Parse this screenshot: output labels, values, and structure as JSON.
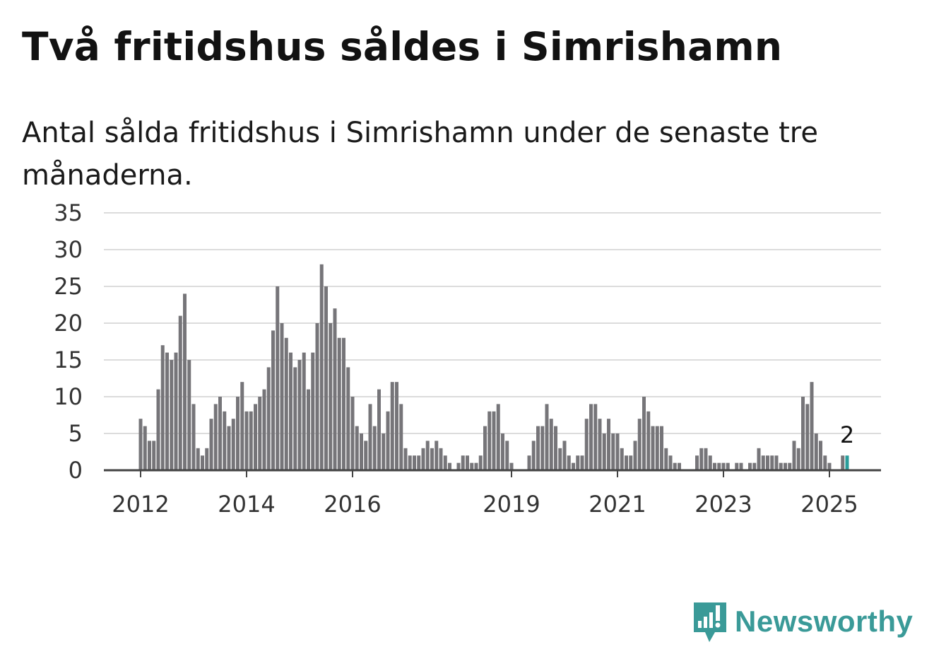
{
  "title": "Två fritidshus såldes i Simrishamn",
  "subtitle": "Antal sålda fritidshus i Simrishamn under de senaste tre månaderna.",
  "brand": {
    "name": "Newsworthy",
    "icon": "newsworthy-logo-icon",
    "color": "#3a9a98"
  },
  "colors": {
    "bar": "#767579",
    "highlight": "#2a9d9b",
    "grid": "#dcdcdc",
    "axis": "#444444"
  },
  "chart_data": {
    "type": "bar",
    "x_start_year": 2012,
    "frequency": "monthly",
    "ylim": [
      0,
      35
    ],
    "yticks": [
      0,
      5,
      10,
      15,
      20,
      25,
      30,
      35
    ],
    "xticks": [
      "2012",
      "2014",
      "2016",
      "2019",
      "2021",
      "2023",
      "2025"
    ],
    "grid": true,
    "series": [
      {
        "values": [
          7,
          6,
          4,
          4,
          11,
          17,
          16,
          15,
          16,
          21,
          24,
          15,
          9,
          3,
          2,
          3,
          7,
          9,
          10,
          8,
          6,
          7,
          10,
          12,
          8,
          8,
          9,
          10,
          11,
          14,
          19,
          25,
          20,
          18,
          16,
          14,
          15,
          16,
          11,
          16,
          20,
          28,
          25,
          20,
          22,
          18,
          18,
          14,
          10,
          6,
          5,
          4,
          9,
          6,
          11,
          5,
          8,
          12,
          12,
          9,
          3,
          2,
          2,
          2,
          3,
          4,
          3,
          4,
          3,
          2,
          1,
          0,
          1,
          2,
          2,
          1,
          1,
          2,
          6,
          8,
          8,
          9,
          5,
          4,
          1,
          0,
          0,
          0,
          2,
          4,
          6,
          6,
          9,
          7,
          6,
          3,
          4,
          2,
          1,
          2,
          2,
          7,
          9,
          9,
          7,
          5,
          7,
          5,
          5,
          3,
          2,
          2,
          4,
          7,
          10,
          8,
          6,
          6,
          6,
          3,
          2,
          1,
          1,
          0,
          0,
          0,
          2,
          3,
          3,
          2,
          1,
          1,
          1,
          1,
          0,
          1,
          1,
          0,
          1,
          1,
          3,
          2,
          2,
          2,
          2,
          1,
          1,
          1,
          4,
          3,
          10,
          9,
          12,
          5,
          4,
          2,
          1,
          0,
          0,
          2,
          2
        ]
      }
    ],
    "highlight_last": 1,
    "annotation": {
      "label": "2"
    }
  }
}
